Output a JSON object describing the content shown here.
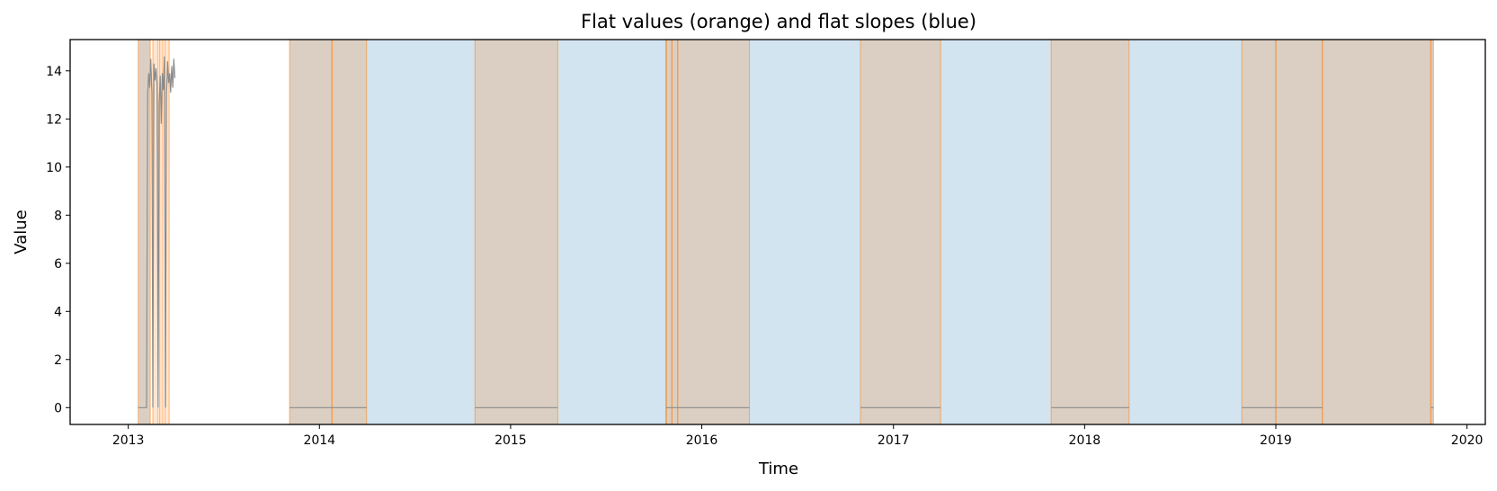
{
  "chart_data": {
    "type": "line",
    "title": "Flat values (orange) and flat slopes (blue)",
    "xlabel": "Time",
    "ylabel": "Value",
    "xlim": [
      "2012-09-12",
      "2020-02-05"
    ],
    "ylim": [
      -0.7,
      15.3
    ],
    "x_ticks": [
      "2013",
      "2014",
      "2015",
      "2016",
      "2017",
      "2018",
      "2019",
      "2020"
    ],
    "y_ticks": [
      0,
      2,
      4,
      6,
      8,
      10,
      12,
      14
    ],
    "grid": false,
    "colors": {
      "flat_values": "#ff7f0e",
      "flat_slopes": "#1f77b4",
      "line": "#8c8c8c"
    },
    "flat_value_spans": [
      [
        "2013-01-20",
        "2013-02-12"
      ],
      [
        "2013-02-17",
        "2013-02-27"
      ],
      [
        "2013-03-02",
        "2013-03-08"
      ],
      [
        "2013-03-12",
        "2013-03-20"
      ],
      [
        "2013-11-05",
        "2014-04-01"
      ],
      [
        "2014-10-25",
        "2015-04-01"
      ],
      [
        "2015-10-25",
        "2016-04-01"
      ],
      [
        "2016-10-30",
        "2017-04-01"
      ],
      [
        "2017-10-29",
        "2018-03-27"
      ],
      [
        "2018-10-28",
        "2019-03-31"
      ],
      [
        "2019-03-31",
        "2019-10-29"
      ]
    ],
    "flat_slope_spans": [
      [
        "2013-01-20",
        "2013-02-12"
      ],
      [
        "2013-11-05",
        "2019-10-29"
      ]
    ],
    "flat_value_edges": [
      "2014-01-25",
      "2015-10-25",
      "2015-11-05",
      "2015-11-16",
      "2019-01-01",
      "2019-10-24"
    ],
    "series": [
      {
        "x": [
          "2013-01-20",
          "2013-02-05",
          "2013-02-07",
          "2013-02-09",
          "2013-02-11",
          "2013-02-13",
          "2013-02-15",
          "2013-02-17",
          "2013-02-19",
          "2013-02-21",
          "2013-02-23",
          "2013-02-25",
          "2013-02-27",
          "2013-03-01",
          "2013-03-03",
          "2013-03-05",
          "2013-03-07",
          "2013-03-09",
          "2013-03-11",
          "2013-03-13",
          "2013-03-15",
          "2013-03-17",
          "2013-03-19",
          "2013-03-21",
          "2013-03-23",
          "2013-03-25",
          "2013-03-27",
          "2013-03-29",
          "2013-03-31"
        ],
        "values": [
          0,
          0,
          13.0,
          13.9,
          13.3,
          14.5,
          13.1,
          0,
          14.3,
          13.6,
          14.1,
          13.4,
          0,
          12.6,
          13.8,
          11.8,
          13.9,
          13.2,
          14.6,
          0,
          13.0,
          14.4,
          13.5,
          13.9,
          13.1,
          14.2,
          13.3,
          14.5,
          13.7
        ]
      },
      {
        "x": [
          "2013-11-05",
          "2014-04-01"
        ],
        "values": [
          0,
          0
        ]
      },
      {
        "x": [
          "2014-10-25",
          "2015-04-01"
        ],
        "values": [
          0,
          0
        ]
      },
      {
        "x": [
          "2015-10-25",
          "2016-04-01"
        ],
        "values": [
          0,
          0
        ]
      },
      {
        "x": [
          "2016-10-30",
          "2017-04-01"
        ],
        "values": [
          0,
          0
        ]
      },
      {
        "x": [
          "2017-10-29",
          "2018-03-27"
        ],
        "values": [
          0,
          0
        ]
      },
      {
        "x": [
          "2018-10-28",
          "2019-03-31"
        ],
        "values": [
          0,
          0
        ]
      },
      {
        "x": [
          "2019-10-24",
          "2019-10-29"
        ],
        "values": [
          0,
          0
        ]
      }
    ]
  }
}
